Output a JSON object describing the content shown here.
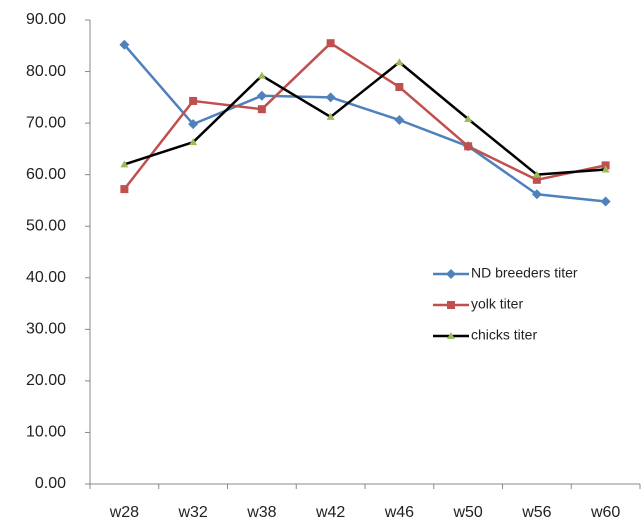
{
  "chart_data": {
    "type": "line",
    "categories": [
      "w28",
      "w32",
      "w38",
      "w42",
      "w46",
      "w50",
      "w56",
      "w60"
    ],
    "series": [
      {
        "name": "ND breeders titer",
        "color": "#4f81bd",
        "marker": "diamond",
        "marker_color": "#4f81bd",
        "values": [
          85.2,
          69.8,
          75.3,
          75.0,
          70.6,
          65.5,
          56.2,
          54.8
        ]
      },
      {
        "name": "yolk titer",
        "color": "#c0504d",
        "marker": "square",
        "marker_color": "#c0504d",
        "values": [
          57.2,
          74.3,
          72.7,
          85.5,
          77.0,
          65.5,
          59.0,
          61.8
        ]
      },
      {
        "name": "chicks titer",
        "color": "#000000",
        "marker": "triangle",
        "marker_color": "#9bbb59",
        "values": [
          62.0,
          66.3,
          79.2,
          71.2,
          81.8,
          70.8,
          60.0,
          61.0
        ]
      }
    ],
    "ylim": [
      0,
      90
    ],
    "yticks": [
      {
        "value": 0,
        "label": "0.00"
      },
      {
        "value": 10,
        "label": "10.00"
      },
      {
        "value": 20,
        "label": "20.00"
      },
      {
        "value": 30,
        "label": "30.00"
      },
      {
        "value": 40,
        "label": "40.00"
      },
      {
        "value": 50,
        "label": "50.00"
      },
      {
        "value": 60,
        "label": "60.00"
      },
      {
        "value": 70,
        "label": "70.00"
      },
      {
        "value": 80,
        "label": "80.00"
      },
      {
        "value": 90,
        "label": "90.00"
      }
    ],
    "grid": false,
    "legend": "right"
  }
}
